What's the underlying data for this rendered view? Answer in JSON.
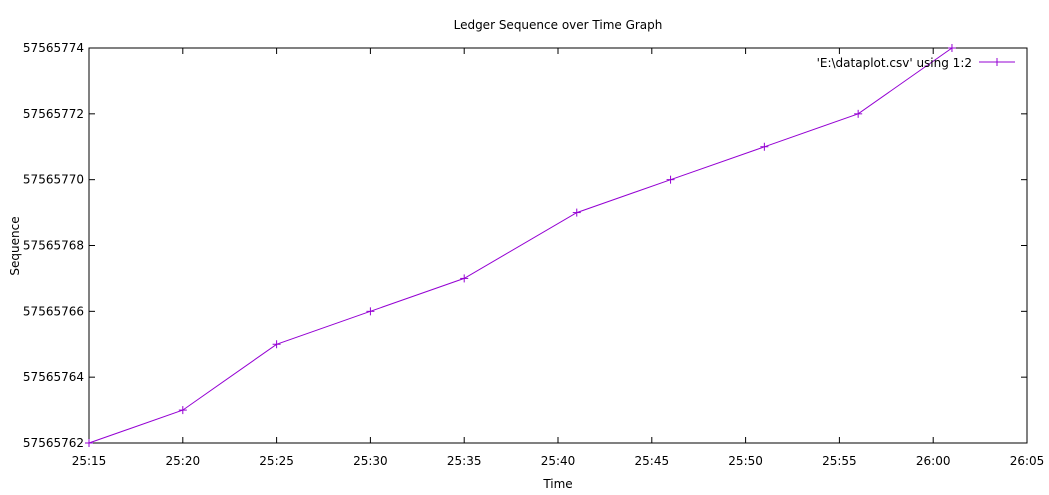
{
  "chart_data": {
    "type": "line",
    "title": "Ledger Sequence over Time Graph",
    "xlabel": "Time",
    "ylabel": "Sequence",
    "xlim": [
      "25:15",
      "26:05"
    ],
    "ylim": [
      57565762,
      57565774
    ],
    "xticks": [
      "25:15",
      "25:20",
      "25:25",
      "25:30",
      "25:35",
      "25:40",
      "25:45",
      "25:50",
      "25:55",
      "26:00",
      "26:05"
    ],
    "yticks": [
      "57565762",
      "57565764",
      "57565766",
      "57565768",
      "57565770",
      "57565772",
      "57565774"
    ],
    "grid": false,
    "legend_position": "top-right",
    "series": [
      {
        "name": "'E:\\dataplot.csv' using 1:2",
        "color": "#9400d3",
        "x": [
          "25:15",
          "25:20",
          "25:25",
          "25:30",
          "25:35",
          "25:41",
          "25:46",
          "25:51",
          "25:56",
          "26:01"
        ],
        "y": [
          57565762,
          57565763,
          57565765,
          57565766,
          57565767,
          57565769,
          57565770,
          57565771,
          57565772,
          57565774
        ]
      }
    ]
  }
}
